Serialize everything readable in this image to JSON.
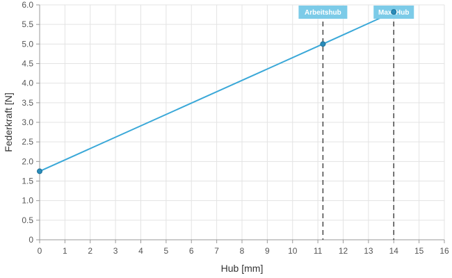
{
  "chart_data": {
    "type": "line",
    "xlabel": "Hub [mm]",
    "ylabel": "Federkraft [N]",
    "xlim": [
      0,
      16
    ],
    "ylim": [
      0,
      6.0
    ],
    "x_ticks": [
      "0",
      "1",
      "2",
      "3",
      "4",
      "5",
      "6",
      "7",
      "8",
      "9",
      "10",
      "11",
      "12",
      "13",
      "14",
      "15",
      "16"
    ],
    "y_ticks": [
      "0",
      "0.5",
      "1.0",
      "1.5",
      "2.0",
      "2.5",
      "3.0",
      "3.5",
      "4.0",
      "4.5",
      "5.0",
      "5.5",
      "6.0"
    ],
    "grid": true,
    "series": [
      {
        "color": "#3aa8d8",
        "points": [
          {
            "x": 0,
            "y": 1.75
          },
          {
            "x": 11.2,
            "y": 5.0
          },
          {
            "x": 14.0,
            "y": 5.82
          }
        ]
      }
    ],
    "markers": [
      {
        "label": "Arbeitshub",
        "x": 11.2
      },
      {
        "label": "Max. Hub",
        "x": 14.0
      }
    ],
    "colors": {
      "line": "#3aa8d8",
      "point": "#2a8cba",
      "grid": "#e3e3e3",
      "marker_line": "#444444",
      "marker_label_bg": "#7ccbe8"
    }
  }
}
